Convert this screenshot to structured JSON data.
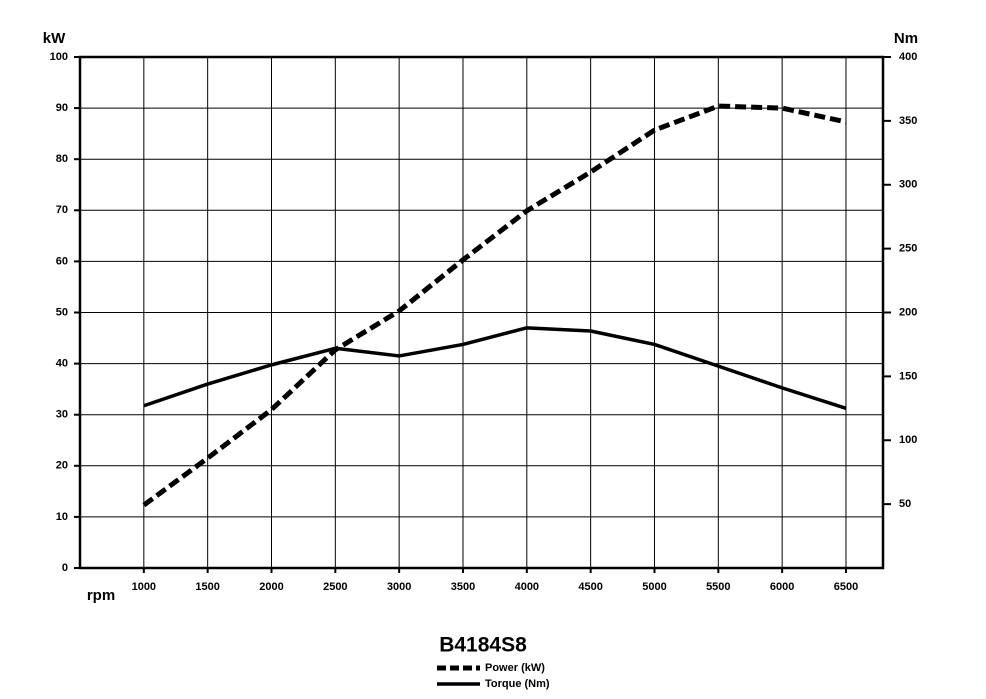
{
  "chart_data": {
    "type": "line",
    "title": "B4184S8",
    "x_label": "rpm",
    "y_label": "kW",
    "y2_label": "Nm",
    "x": [
      1000,
      1500,
      2000,
      2500,
      3000,
      3500,
      4000,
      4500,
      5000,
      5500,
      6000,
      6500
    ],
    "series": [
      {
        "name": "Power (kW)",
        "color": "#000000",
        "dashed": true,
        "values": [
          12.3,
          21.5,
          31,
          42.7,
          50.3,
          60.3,
          69.9,
          77.5,
          85.7,
          90.4,
          90,
          87.3
        ]
      },
      {
        "name": "Torque (Nm)",
        "color": "#000000",
        "dashed": false,
        "axis": "y2",
        "values": [
          127,
          144,
          159,
          172,
          166,
          175,
          188,
          185.5,
          175,
          158,
          141,
          125
        ]
      }
    ],
    "xlim": [
      500,
      6790
    ],
    "xticks": [
      1000,
      1500,
      2000,
      2500,
      3000,
      3500,
      4000,
      4500,
      5000,
      5500,
      6000,
      6500
    ],
    "ylim": [
      0,
      100
    ],
    "yticks": [
      0,
      10,
      20,
      30,
      40,
      50,
      60,
      70,
      80,
      90,
      100
    ],
    "y2lim": [
      0,
      400
    ],
    "y2ticks": [
      50,
      100,
      150,
      200,
      250,
      300,
      350,
      400
    ],
    "grid": true
  }
}
